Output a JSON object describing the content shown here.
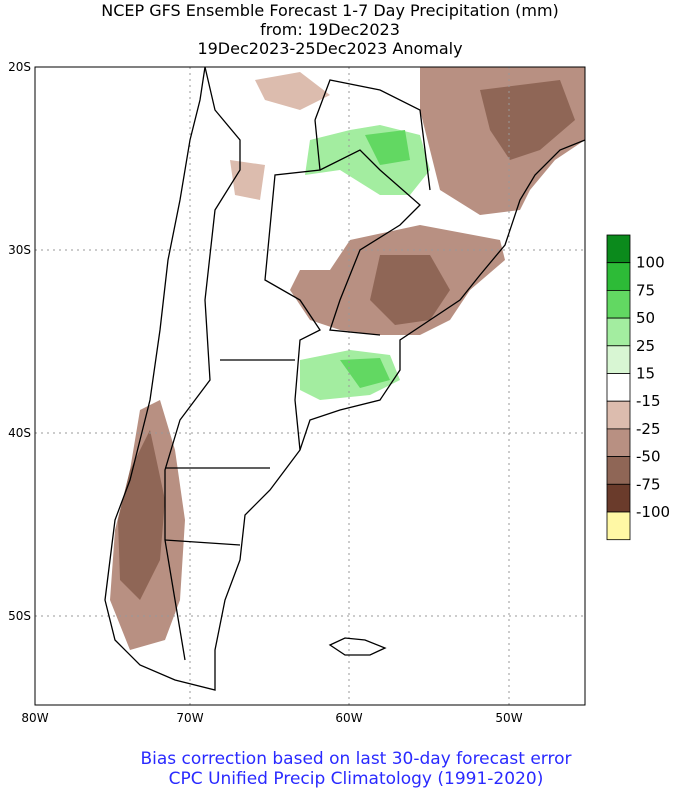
{
  "header": {
    "title": [
      "NCEP GFS Ensemble Forecast 1-7 Day Precipitation (mm)",
      "from: 19Dec2023",
      "19Dec2023-25Dec2023 Anomaly"
    ]
  },
  "axes": {
    "lat_labels": [
      "20S",
      "30S",
      "40S",
      "50S"
    ],
    "lon_labels": [
      "80W",
      "70W",
      "60W",
      "50W"
    ]
  },
  "legend": {
    "colors": [
      "#0b8a1c",
      "#2dbb37",
      "#62d862",
      "#a3eda0",
      "#d8f6d3",
      "#ffffff",
      "#dcbcae",
      "#b89082",
      "#8f6656",
      "#6a3b2b",
      "#fff8a5"
    ],
    "labels": [
      "100",
      "75",
      "50",
      "25",
      "15",
      "-15",
      "-25",
      "-50",
      "-75",
      "-100"
    ]
  },
  "footer": {
    "lines": [
      "Bias correction based on last 30-day forecast error",
      "CPC Unified Precip Climatology (1991-2020)"
    ]
  }
}
